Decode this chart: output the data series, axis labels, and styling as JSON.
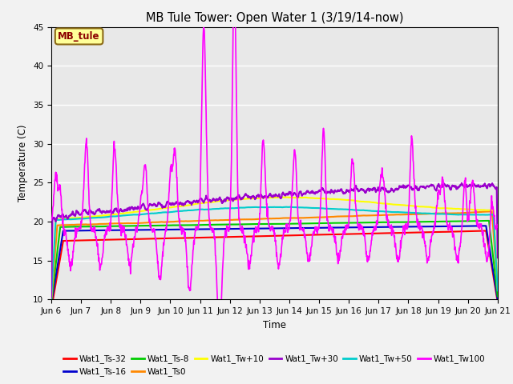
{
  "title": "MB Tule Tower: Open Water 1 (3/19/14-now)",
  "xlabel": "Time",
  "ylabel": "Temperature (C)",
  "ylim": [
    10,
    45
  ],
  "yticks": [
    10,
    15,
    20,
    25,
    30,
    35,
    40,
    45
  ],
  "xlim": [
    0,
    15
  ],
  "xtick_labels": [
    "Jun 6",
    "Jun 7",
    "Jun 8",
    "Jun 9",
    "Jun 10",
    "Jun 11",
    "Jun 12",
    "Jun 13",
    "Jun 14",
    "Jun 15",
    "Jun 16",
    "Jun 17",
    "Jun 18",
    "Jun 19",
    "Jun 20",
    "Jun 21"
  ],
  "annotation_text": "MB_tule",
  "annotation_color": "#8B0000",
  "annotation_bg": "#FFFF99",
  "annotation_border": "#8B6914",
  "series_colors": {
    "Wat1_Ts-32": "#FF0000",
    "Wat1_Ts-16": "#0000CC",
    "Wat1_Ts-8": "#00CC00",
    "Wat1_Ts0": "#FF8800",
    "Wat1_Tw+10": "#FFFF00",
    "Wat1_Tw+30": "#9900CC",
    "Wat1_Tw+50": "#00CCCC",
    "Wat1_Tw100": "#FF00FF"
  },
  "plot_bg_color": "#E8E8E8",
  "fig_bg_color": "#F2F2F2",
  "grid_color": "#FFFFFF"
}
